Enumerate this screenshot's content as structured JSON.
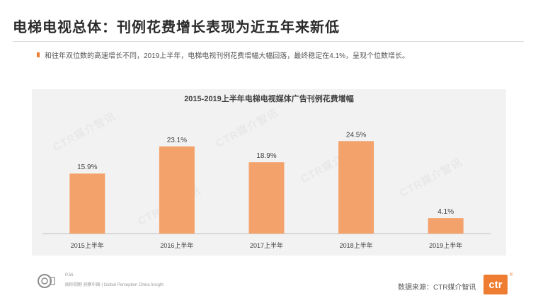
{
  "slide": {
    "title": "电梯电视总体：刊例花费增长表现为近五年来新低",
    "bullet": "和往年双位数的高速增长不同，2019上半年，电梯电视刊例花费增幅大幅回落，最终稳定在4.1%，呈现个位数增长。"
  },
  "chart_data": {
    "type": "bar",
    "title": "2015-2019上半年电梯电视媒体广告刊例花费增幅",
    "categories": [
      "2015上半年",
      "2016上半年",
      "2017上半年",
      "2018上半年",
      "2019上半年"
    ],
    "values": [
      15.9,
      23.1,
      18.9,
      24.5,
      4.1
    ],
    "data_labels": [
      "15.9%",
      "23.1%",
      "18.9%",
      "24.5%",
      "4.1%"
    ],
    "unit": "%",
    "ylim": [
      0,
      30
    ],
    "grid": false,
    "legend": "none",
    "bar_color": "#f4a26b"
  },
  "footer": {
    "page": "P.56",
    "tagline": "国际视野  洞察中国  |  Global Perception  China Insight",
    "source": "数据来源：CTR媒介智讯",
    "brand": "ctr",
    "brand_mark": "®",
    "logo_icon": "seal-logo-icon"
  },
  "watermark": {
    "text": "CTR媒介智讯"
  }
}
